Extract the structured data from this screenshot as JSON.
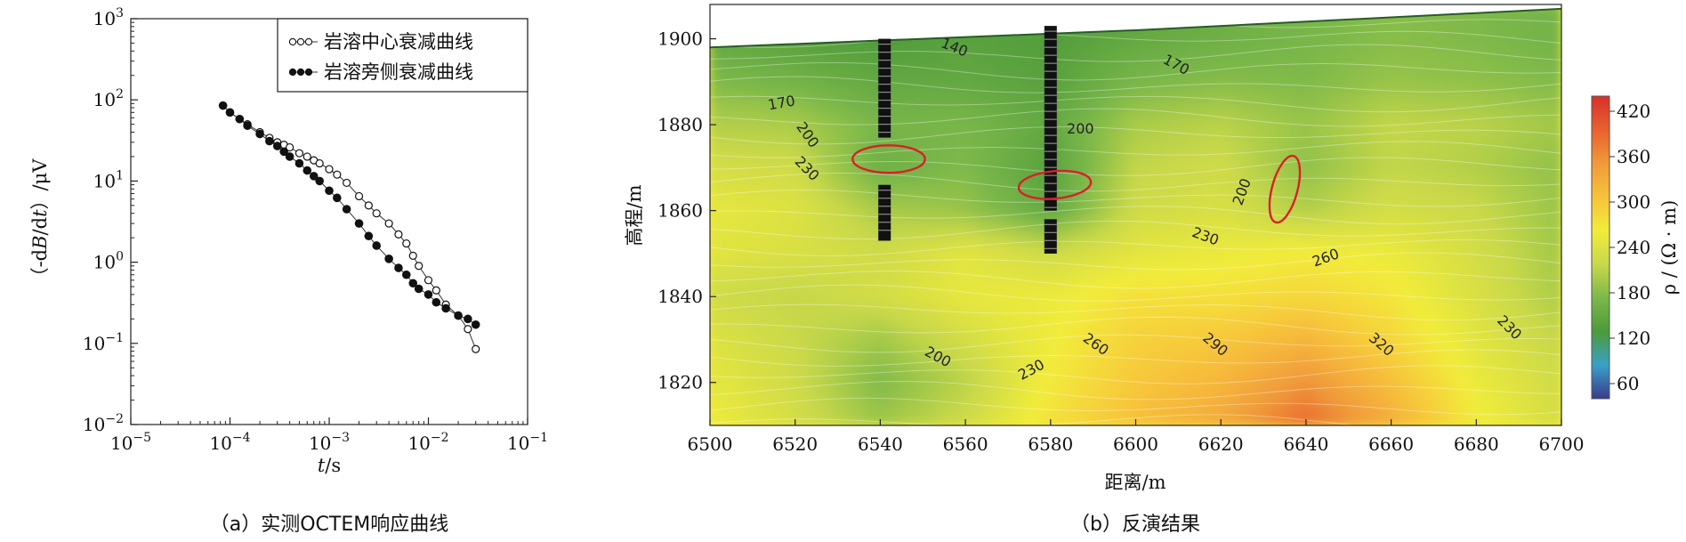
{
  "chart_data": [
    {
      "type": "scatter",
      "xscale": "log",
      "yscale": "log",
      "xlim_exp": [
        -5,
        -1
      ],
      "ylim_exp": [
        -2,
        3
      ],
      "xticks": [
        {
          "base": "10",
          "exp": "−5"
        },
        {
          "base": "10",
          "exp": "−4"
        },
        {
          "base": "10",
          "exp": "−3"
        },
        {
          "base": "10",
          "exp": "−2"
        },
        {
          "base": "10",
          "exp": "−1"
        }
      ],
      "yticks": [
        {
          "base": "10",
          "exp": "3"
        },
        {
          "base": "10",
          "exp": "2"
        },
        {
          "base": "10",
          "exp": "1"
        },
        {
          "base": "10",
          "exp": "0"
        },
        {
          "base": "10",
          "exp": "−1"
        },
        {
          "base": "10",
          "exp": "−2"
        }
      ],
      "xlabel_t": "t",
      "xlabel_unit": "/s",
      "ylabel_pre": "（-d",
      "ylabel_b": "B",
      "ylabel_mid": "/d",
      "ylabel_t": "t",
      "ylabel_post": "）/μV",
      "legend_position": "top-right",
      "series": [
        {
          "name": "岩溶中心衰减曲线",
          "marker": "open-circle",
          "x": [
            8.5e-05,
            0.0001,
            0.000125,
            0.00015,
            0.0002,
            0.00025,
            0.0003,
            0.00035,
            0.0004,
            0.0005,
            0.0006,
            0.0007,
            0.0008,
            0.001,
            0.0012,
            0.0015,
            0.002,
            0.0025,
            0.003,
            0.004,
            0.005,
            0.006,
            0.007,
            0.008,
            0.01,
            0.012,
            0.015,
            0.02,
            0.025,
            0.03
          ],
          "y": [
            85,
            70,
            58,
            50,
            40,
            34,
            30,
            28,
            26,
            22,
            20,
            18,
            16.5,
            14,
            12,
            9.5,
            6.5,
            5,
            4,
            3,
            2.2,
            1.7,
            1.2,
            0.9,
            0.6,
            0.45,
            0.3,
            0.22,
            0.15,
            0.085
          ]
        },
        {
          "name": "岩溶旁侧衰减曲线",
          "marker": "filled-circle",
          "x": [
            8.5e-05,
            0.0001,
            0.000125,
            0.00015,
            0.0002,
            0.00025,
            0.0003,
            0.00035,
            0.0004,
            0.0005,
            0.0006,
            0.0007,
            0.0008,
            0.001,
            0.0012,
            0.0015,
            0.002,
            0.0025,
            0.003,
            0.004,
            0.005,
            0.006,
            0.007,
            0.008,
            0.01,
            0.012,
            0.015,
            0.02,
            0.025,
            0.03
          ],
          "y": [
            85,
            70,
            58,
            48,
            38,
            31,
            27,
            23,
            20,
            16.5,
            13.5,
            11.5,
            10,
            7.6,
            6.2,
            4.5,
            3,
            2.1,
            1.6,
            1.1,
            0.85,
            0.7,
            0.55,
            0.47,
            0.4,
            0.32,
            0.27,
            0.22,
            0.2,
            0.17
          ]
        }
      ],
      "caption": "（a）实测OCTEM响应曲线"
    },
    {
      "type": "heatmap",
      "xlim": [
        6500,
        6700
      ],
      "ylim": [
        1810,
        1908
      ],
      "xticks": [
        6500,
        6520,
        6540,
        6560,
        6580,
        6600,
        6620,
        6640,
        6660,
        6680,
        6700
      ],
      "yticks": [
        1900,
        1880,
        1860,
        1840,
        1820
      ],
      "xlabel": "距离/m",
      "ylabel": "高程/m",
      "colorbar": {
        "label": "ρ / (Ω · m)",
        "ticks": [
          420,
          360,
          300,
          240,
          180,
          120,
          60
        ],
        "range": [
          40,
          440
        ],
        "colors": [
          "#3a3a8c",
          "#3aa0c8",
          "#4d9a3a",
          "#7cb84a",
          "#c8d84a",
          "#f2ec3a",
          "#f7c23a",
          "#f09a3a",
          "#e8602e",
          "#d8302a"
        ]
      },
      "surface": [
        [
          6500,
          1898
        ],
        [
          6600,
          1902
        ],
        [
          6700,
          1907
        ]
      ],
      "resistivity_grid": {
        "x": [
          6500,
          6520,
          6540,
          6560,
          6580,
          6600,
          6620,
          6640,
          6660,
          6680,
          6700
        ],
        "y": [
          1900,
          1890,
          1880,
          1870,
          1860,
          1850,
          1840,
          1830,
          1820,
          1810
        ],
        "rho": [
          [
            150,
            140,
            130,
            140,
            135,
            150,
            160,
            170,
            180,
            175,
            165
          ],
          [
            175,
            165,
            150,
            150,
            140,
            170,
            180,
            175,
            190,
            185,
            175
          ],
          [
            205,
            200,
            170,
            170,
            150,
            200,
            210,
            190,
            215,
            210,
            195
          ],
          [
            230,
            225,
            160,
            175,
            140,
            215,
            225,
            185,
            215,
            205,
            185
          ],
          [
            250,
            240,
            200,
            190,
            150,
            225,
            235,
            205,
            230,
            220,
            190
          ],
          [
            245,
            235,
            225,
            245,
            225,
            245,
            255,
            265,
            255,
            230,
            195
          ],
          [
            225,
            215,
            230,
            250,
            255,
            275,
            275,
            285,
            270,
            235,
            200
          ],
          [
            240,
            220,
            195,
            230,
            260,
            290,
            300,
            320,
            285,
            245,
            215
          ],
          [
            250,
            225,
            175,
            210,
            265,
            300,
            320,
            355,
            310,
            255,
            225
          ],
          [
            260,
            230,
            195,
            225,
            275,
            310,
            335,
            390,
            330,
            265,
            230
          ]
        ]
      },
      "contour_labels": [
        {
          "text": "140",
          "x": 6557,
          "y": 1897,
          "angle": 22
        },
        {
          "text": "170",
          "x": 6517,
          "y": 1884,
          "angle": -10
        },
        {
          "text": "170",
          "x": 6609,
          "y": 1893,
          "angle": 28
        },
        {
          "text": "200",
          "x": 6522,
          "y": 1877,
          "angle": 55
        },
        {
          "text": "230",
          "x": 6522,
          "y": 1869,
          "angle": 45
        },
        {
          "text": "200",
          "x": 6587,
          "y": 1878,
          "angle": 0
        },
        {
          "text": "200",
          "x": 6626,
          "y": 1864,
          "angle": -70
        },
        {
          "text": "230",
          "x": 6616,
          "y": 1853,
          "angle": 20
        },
        {
          "text": "260",
          "x": 6645,
          "y": 1848,
          "angle": -20
        },
        {
          "text": "230",
          "x": 6687,
          "y": 1832,
          "angle": 45
        },
        {
          "text": "200",
          "x": 6553,
          "y": 1825,
          "angle": 28
        },
        {
          "text": "230",
          "x": 6576,
          "y": 1822,
          "angle": -28
        },
        {
          "text": "260",
          "x": 6590,
          "y": 1828,
          "angle": 35
        },
        {
          "text": "290",
          "x": 6618,
          "y": 1828,
          "angle": 40
        },
        {
          "text": "320",
          "x": 6657,
          "y": 1828,
          "angle": 40
        }
      ],
      "anomalies": [
        {
          "cx": 6542,
          "cy": 1872,
          "rx": 8.5,
          "ry": 3.2,
          "angle": 0
        },
        {
          "cx": 6581,
          "cy": 1866,
          "rx": 8.5,
          "ry": 3.2,
          "angle": -5
        },
        {
          "cx": 6635,
          "cy": 1865,
          "rx": 3.0,
          "ry": 8.0,
          "angle": 15
        }
      ],
      "boreholes": [
        {
          "x": 6541,
          "top": 1900,
          "bottom": 1853,
          "gap": [
            1877,
            1866
          ]
        },
        {
          "x": 6580,
          "top": 1903,
          "bottom": 1850,
          "gap": [
            1860,
            1858
          ]
        }
      ],
      "caption": "（b）反演结果"
    }
  ]
}
